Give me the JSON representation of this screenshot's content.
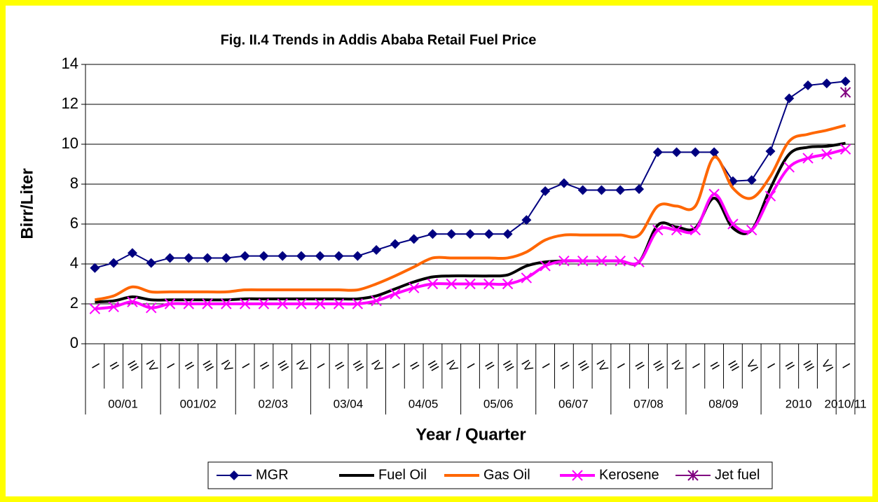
{
  "chart_data": {
    "type": "line",
    "title": "Fig. II.4 Trends in Addis Ababa Retail Fuel Price",
    "x_label": "Year / Quarter",
    "y_label": "Birr/Liter",
    "groups": [
      {
        "label": "00/01",
        "quarters": [
          "I",
          "II",
          "III",
          "IV"
        ]
      },
      {
        "label": "001/02",
        "quarters": [
          "I",
          "II",
          "III",
          "IV"
        ]
      },
      {
        "label": "02/03",
        "quarters": [
          "I",
          "II",
          "III",
          "IV"
        ]
      },
      {
        "label": "03/04",
        "quarters": [
          "I",
          "II",
          "III",
          "IV"
        ]
      },
      {
        "label": "04/05",
        "quarters": [
          "I",
          "II",
          "III",
          "IV"
        ]
      },
      {
        "label": "05/06",
        "quarters": [
          "I",
          "II",
          "III",
          "IV"
        ]
      },
      {
        "label": "06/07",
        "quarters": [
          "I",
          "II",
          "III",
          "IV"
        ]
      },
      {
        "label": "07/08",
        "quarters": [
          "I",
          "II",
          "III",
          "IV"
        ]
      },
      {
        "label": "08/09",
        "quarters": [
          "I",
          "II",
          "III",
          "VI"
        ]
      },
      {
        "label": "2010",
        "quarters": [
          "I",
          "II",
          "III",
          "VI"
        ]
      },
      {
        "label": "2010/11",
        "quarters": [
          "I"
        ]
      }
    ],
    "ylim": [
      0,
      14
    ],
    "yticks": [
      0,
      2,
      4,
      6,
      8,
      10,
      12,
      14
    ],
    "grid": true,
    "legend": "bottom",
    "series": [
      {
        "name": "MGR",
        "color": "#000080",
        "marker": "diamond",
        "smooth": false,
        "values": [
          3.8,
          4.05,
          4.55,
          4.05,
          4.3,
          4.3,
          4.3,
          4.3,
          4.4,
          4.4,
          4.4,
          4.4,
          4.4,
          4.4,
          4.4,
          4.7,
          5.0,
          5.25,
          5.5,
          5.5,
          5.5,
          5.5,
          5.5,
          6.2,
          7.65,
          8.05,
          7.7,
          7.7,
          7.7,
          7.75,
          9.6,
          9.6,
          9.6,
          9.6,
          8.15,
          8.2,
          9.65,
          12.3,
          12.95,
          13.05,
          13.15
        ]
      },
      {
        "name": "Fuel Oil",
        "color": "#000000",
        "marker": "none",
        "smooth": true,
        "values": [
          2.1,
          2.15,
          2.35,
          2.2,
          2.2,
          2.2,
          2.2,
          2.2,
          2.25,
          2.25,
          2.25,
          2.25,
          2.25,
          2.25,
          2.25,
          2.4,
          2.75,
          3.1,
          3.35,
          3.4,
          3.4,
          3.4,
          3.45,
          3.9,
          4.1,
          4.15,
          4.15,
          4.15,
          4.15,
          4.1,
          5.95,
          5.85,
          5.8,
          7.3,
          5.8,
          5.7,
          7.8,
          9.5,
          9.85,
          9.9,
          10.05
        ]
      },
      {
        "name": "Gas Oil",
        "color": "#ff6600",
        "marker": "none",
        "smooth": true,
        "values": [
          2.2,
          2.4,
          2.85,
          2.6,
          2.6,
          2.6,
          2.6,
          2.6,
          2.7,
          2.7,
          2.7,
          2.7,
          2.7,
          2.7,
          2.7,
          3.0,
          3.4,
          3.85,
          4.3,
          4.3,
          4.3,
          4.3,
          4.3,
          4.6,
          5.2,
          5.45,
          5.45,
          5.45,
          5.45,
          5.45,
          6.9,
          6.9,
          6.9,
          9.35,
          7.8,
          7.3,
          8.4,
          10.15,
          10.5,
          10.7,
          10.95
        ]
      },
      {
        "name": "Kerosene",
        "color": "#ff00ff",
        "marker": "x",
        "smooth": true,
        "values": [
          1.75,
          1.85,
          2.1,
          1.8,
          2.0,
          2.0,
          2.0,
          2.0,
          2.0,
          2.0,
          2.0,
          2.0,
          2.0,
          2.0,
          2.0,
          2.15,
          2.5,
          2.8,
          3.0,
          3.0,
          3.0,
          3.0,
          3.0,
          3.3,
          3.9,
          4.15,
          4.15,
          4.15,
          4.15,
          4.1,
          5.7,
          5.7,
          5.7,
          7.5,
          6.0,
          5.7,
          7.4,
          8.85,
          9.3,
          9.5,
          9.75
        ]
      },
      {
        "name": "Jet fuel",
        "color": "#800080",
        "marker": "star",
        "smooth": false,
        "values": [
          null,
          null,
          null,
          null,
          null,
          null,
          null,
          null,
          null,
          null,
          null,
          null,
          null,
          null,
          null,
          null,
          null,
          null,
          null,
          null,
          null,
          null,
          null,
          null,
          null,
          null,
          null,
          null,
          null,
          null,
          null,
          null,
          null,
          null,
          null,
          null,
          null,
          null,
          null,
          null,
          12.6
        ]
      }
    ]
  }
}
